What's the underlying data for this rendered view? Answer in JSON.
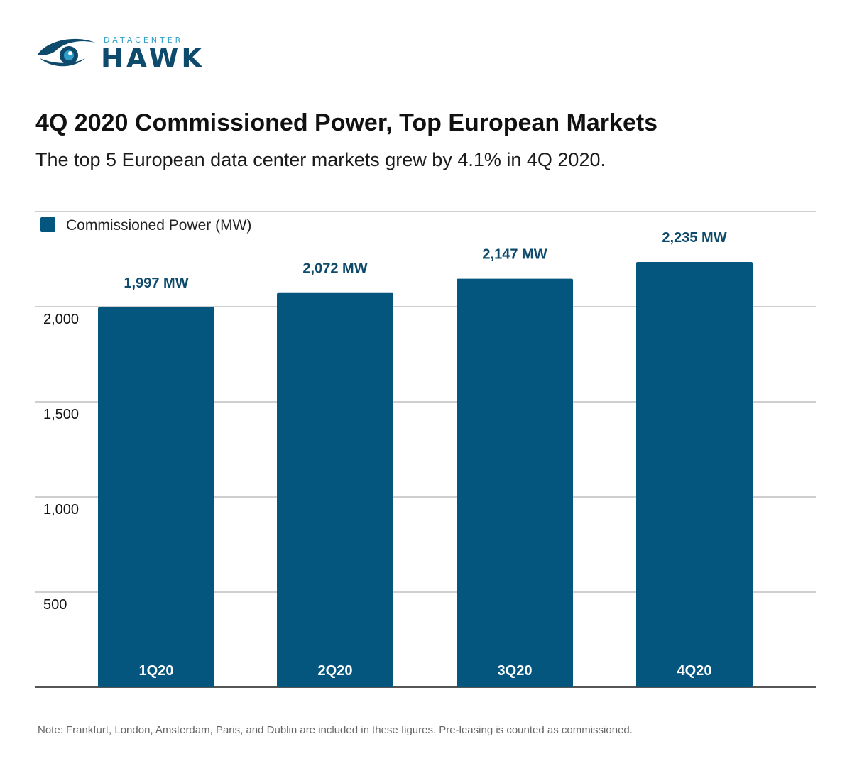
{
  "brand": {
    "sub": "DATACENTER",
    "main": "HAWK",
    "icon": "hawk-eye-icon",
    "color_dark": "#0d4a6b",
    "color_light": "#2d9fc9"
  },
  "title": "4Q 2020 Commissioned Power, Top European Markets",
  "subtitle": "The top 5 European data center markets grew by 4.1% in 4Q 2020.",
  "note": "Note: Frankfurt, London, Amsterdam, Paris, and Dublin are included in these figures. Pre-leasing is counted as commissioned.",
  "chart_data": {
    "type": "bar",
    "categories": [
      "1Q20",
      "2Q20",
      "3Q20",
      "4Q20"
    ],
    "series": [
      {
        "name": "Commissioned Power (MW)",
        "values": [
          1997,
          2072,
          2147,
          2235
        ],
        "labels": [
          "1,997 MW",
          "2,072 MW",
          "2,147 MW",
          "2,235 MW"
        ],
        "color": "#04567f"
      }
    ],
    "yticks": [
      {
        "value": 500,
        "label": "500"
      },
      {
        "value": 1000,
        "label": "1,000"
      },
      {
        "value": 1500,
        "label": "1,500"
      },
      {
        "value": 2000,
        "label": "2,000"
      }
    ],
    "ylim": [
      0,
      2500
    ],
    "grid": true,
    "legend": "top-left",
    "xlabel": "",
    "ylabel": ""
  }
}
